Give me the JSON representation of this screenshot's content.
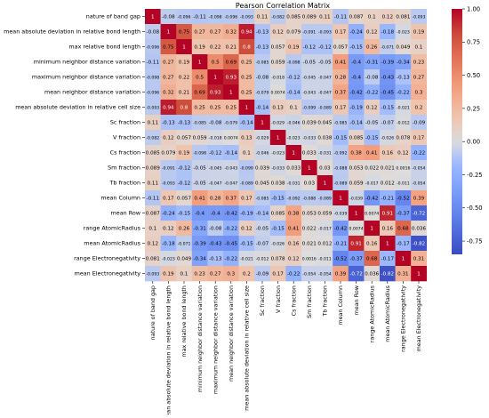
{
  "chart_data": {
    "type": "heatmap",
    "title": "Pearson Correlation Matrix",
    "labels": [
      "nature of band gap",
      "mean absolute deviation in relative bond length",
      "max relative bond length",
      "minimum neighbor distance variation",
      "maximum neighbor distance variation",
      "mean neighbor distance variation",
      "mean absolute deviation in relative cell size",
      "Sc fraction",
      "V fraction",
      "Cs fraction",
      "Sm fraction",
      "Tb fraction",
      "mean Column",
      "mean Row",
      "range AtomicRadius",
      "mean AtomicRadius",
      "range Electronegativity",
      "mean Electronegativity"
    ],
    "matrix": [
      [
        "1",
        "-0.08",
        "-0.096",
        "-0.11",
        "-0.098",
        "-0.096",
        "-0.093",
        "0.11",
        "-0.082",
        "0.085",
        "0.089",
        "0.11",
        "-0.11",
        "0.087",
        "0.1",
        "0.12",
        "0.081",
        "-0.093"
      ],
      [
        "-0.08",
        "1",
        "0.75",
        "0.27",
        "0.27",
        "0.32",
        "0.94",
        "-0.13",
        "0.12",
        "0.079",
        "-0.091",
        "-0.093",
        "0.17",
        "-0.24",
        "0.12",
        "-0.18",
        "-0.023",
        "0.19"
      ],
      [
        "-0.096",
        "0.75",
        "1",
        "0.19",
        "0.22",
        "0.21",
        "0.8",
        "-0.13",
        "0.057",
        "0.19",
        "-0.12",
        "-0.12",
        "0.057",
        "-0.15",
        "0.26",
        "-0.071",
        "0.049",
        "0.1"
      ],
      [
        "-0.11",
        "0.27",
        "0.19",
        "1",
        "0.5",
        "0.69",
        "0.25",
        "-0.085",
        "0.059",
        "-0.098",
        "-0.05",
        "-0.05",
        "0.41",
        "-0.4",
        "-0.31",
        "-0.39",
        "-0.34",
        "0.23"
      ],
      [
        "-0.098",
        "0.27",
        "0.22",
        "0.5",
        "1",
        "0.93",
        "0.25",
        "-0.08",
        "-0.018",
        "-0.12",
        "-0.045",
        "-0.047",
        "0.28",
        "-0.4",
        "-0.08",
        "-0.43",
        "-0.13",
        "0.27"
      ],
      [
        "-0.096",
        "0.32",
        "0.21",
        "0.69",
        "0.93",
        "1",
        "0.25",
        "-0.079",
        "0.0074",
        "-0.14",
        "-0.043",
        "-0.047",
        "0.37",
        "-0.42",
        "-0.22",
        "-0.45",
        "-0.22",
        "0.3"
      ],
      [
        "-0.093",
        "0.94",
        "0.8",
        "0.25",
        "0.25",
        "0.25",
        "1",
        "-0.14",
        "0.13",
        "0.1",
        "-0.099",
        "-0.089",
        "0.17",
        "-0.19",
        "0.12",
        "-0.15",
        "-0.021",
        "0.2"
      ],
      [
        "0.11",
        "-0.13",
        "-0.13",
        "-0.085",
        "-0.08",
        "-0.079",
        "-0.14",
        "1",
        "-0.029",
        "-0.046",
        "0.039",
        "0.045",
        "-0.085",
        "-0.14",
        "-0.05",
        "-0.07",
        "-0.012",
        "-0.09"
      ],
      [
        "-0.082",
        "0.12",
        "0.057",
        "0.059",
        "-0.018",
        "0.0074",
        "0.13",
        "-0.029",
        "1",
        "-0.023",
        "-0.033",
        "0.038",
        "-0.15",
        "0.085",
        "-0.15",
        "-0.026",
        "0.078",
        "0.17"
      ],
      [
        "0.085",
        "0.079",
        "0.19",
        "-0.098",
        "-0.12",
        "-0.14",
        "0.1",
        "-0.046",
        "-0.023",
        "1",
        "0.033",
        "-0.031",
        "-0.092",
        "0.38",
        "0.41",
        "0.16",
        "0.12",
        "-0.22"
      ],
      [
        "0.089",
        "-0.091",
        "-0.12",
        "-0.05",
        "-0.045",
        "-0.043",
        "-0.099",
        "0.039",
        "-0.033",
        "0.033",
        "1",
        "0.03",
        "-0.088",
        "0.053",
        "0.022",
        "0.021",
        "0.0016",
        "-0.054"
      ],
      [
        "0.11",
        "-0.093",
        "-0.12",
        "-0.05",
        "-0.047",
        "-0.047",
        "-0.089",
        "0.045",
        "0.038",
        "-0.031",
        "0.03",
        "1",
        "-0.089",
        "0.059",
        "-0.017",
        "0.012",
        "-0.011",
        "-0.054"
      ],
      [
        "-0.11",
        "0.17",
        "0.057",
        "0.41",
        "0.28",
        "0.37",
        "0.17",
        "-0.085",
        "-0.15",
        "-0.092",
        "-0.088",
        "-0.089",
        "1",
        "-0.039",
        "-0.42",
        "-0.21",
        "-0.52",
        "0.39"
      ],
      [
        "0.087",
        "-0.24",
        "-0.15",
        "-0.4",
        "-0.4",
        "-0.42",
        "-0.19",
        "-0.14",
        "0.085",
        "0.38",
        "0.053",
        "0.059",
        "-0.039",
        "1",
        "0.0074",
        "0.91",
        "-0.37",
        "-0.72"
      ],
      [
        "0.1",
        "0.12",
        "0.26",
        "-0.31",
        "-0.08",
        "-0.22",
        "0.12",
        "-0.05",
        "-0.15",
        "0.41",
        "0.022",
        "-0.017",
        "-0.42",
        "0.0074",
        "1",
        "0.16",
        "0.68",
        "0.036"
      ],
      [
        "0.12",
        "-0.18",
        "-0.071",
        "-0.39",
        "-0.43",
        "-0.45",
        "-0.15",
        "-0.07",
        "-0.026",
        "0.16",
        "0.021",
        "0.012",
        "-0.21",
        "0.91",
        "0.16",
        "1",
        "-0.17",
        "-0.82"
      ],
      [
        "0.081",
        "-0.023",
        "0.049",
        "-0.34",
        "-0.13",
        "-0.22",
        "-0.021",
        "-0.012",
        "0.078",
        "0.12",
        "0.0016",
        "-0.011",
        "-0.52",
        "-0.37",
        "0.68",
        "-0.17",
        "1",
        "0.31"
      ],
      [
        "-0.093",
        "0.19",
        "0.1",
        "0.23",
        "0.27",
        "0.3",
        "0.2",
        "-0.09",
        "0.17",
        "-0.22",
        "-0.054",
        "-0.054",
        "0.39",
        "-0.72",
        "0.036",
        "-0.82",
        "0.31",
        "1"
      ]
    ],
    "colorbar": {
      "ticks": [
        "1.00",
        "0.75",
        "0.50",
        "0.25",
        "0.00",
        "-0.25",
        "-0.50",
        "-0.75"
      ],
      "range": [
        -0.85,
        1.0
      ],
      "colormap": "coolwarm"
    }
  }
}
